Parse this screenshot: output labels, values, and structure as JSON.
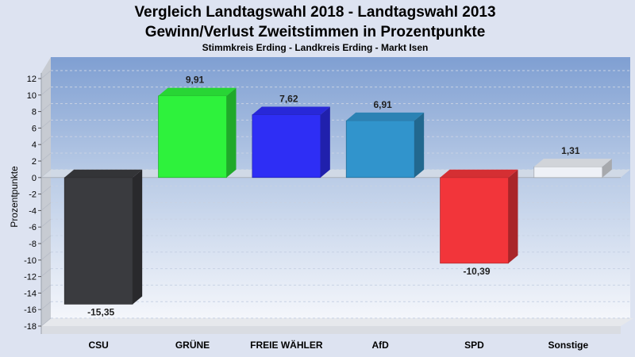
{
  "chart_data": {
    "type": "bar",
    "title": "Vergleich Landtagswahl 2018 - Landtagswahl 2013",
    "subtitle": "Gewinn/Verlust Zweitstimmen in Prozentpunkte",
    "subsubtitle": "Stimmkreis Erding - Landkreis Erding - Markt Isen",
    "ylabel": "Prozentpunkte",
    "xlabel": "",
    "ylim": [
      -18,
      12
    ],
    "yticks": [
      12,
      10,
      8,
      6,
      4,
      2,
      0,
      -2,
      -4,
      -6,
      -8,
      -10,
      -12,
      -14,
      -16,
      -18
    ],
    "grid": true,
    "categories": [
      "CSU",
      "GRÜNE",
      "FREIE WÄHLER",
      "AfD",
      "SPD",
      "Sonstige"
    ],
    "values": [
      -15.35,
      9.91,
      7.62,
      6.91,
      -10.39,
      1.31
    ],
    "value_labels": [
      "-15,35",
      "9,91",
      "7,62",
      "6,91",
      "-10,39",
      "1,31"
    ],
    "colors": [
      "#3a3b3f",
      "#2ef23c",
      "#2e2ef5",
      "#3194cc",
      "#f2353a",
      "#eef1f7"
    ]
  }
}
